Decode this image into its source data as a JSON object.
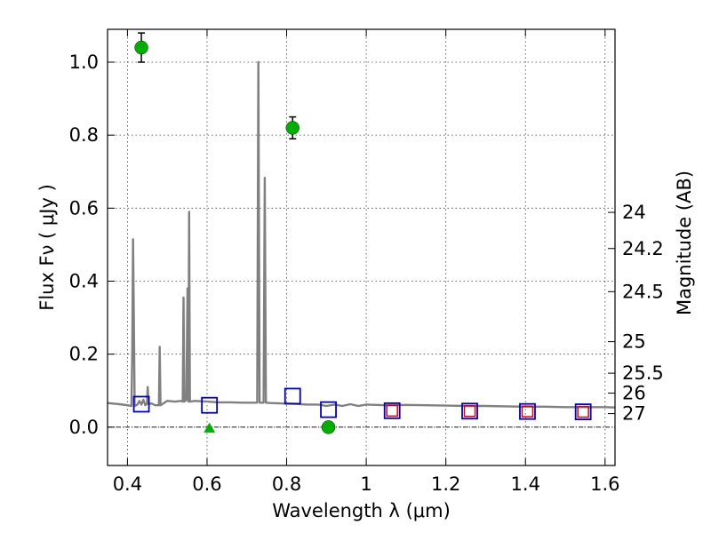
{
  "chart_data": {
    "type": "line",
    "xlabel": "Wavelength  λ (μm)",
    "ylabel": "Flux  Fν  ( μJy )",
    "ylabel_right": "Magnitude (AB)",
    "xlim": [
      0.35,
      1.625
    ],
    "ylim": [
      -0.105,
      1.09
    ],
    "x_ticks": [
      0.4,
      0.6,
      0.8,
      1.0,
      1.2,
      1.4,
      1.6
    ],
    "x_tick_labels": [
      "0.4",
      "0.6",
      "0.8",
      "1",
      "1.2",
      "1.4",
      "1.6"
    ],
    "y_ticks": [
      0.0,
      0.2,
      0.4,
      0.6,
      0.8,
      1.0
    ],
    "y_tick_labels": [
      "0.0",
      "0.2",
      "0.4",
      "0.6",
      "0.8",
      "1.0"
    ],
    "right_ticks": [
      {
        "label": "24",
        "mag": 24.0
      },
      {
        "label": "24.2",
        "mag": 24.2
      },
      {
        "label": "24.5",
        "mag": 24.5
      },
      {
        "label": "25",
        "mag": 25.0
      },
      {
        "label": "25.5",
        "mag": 25.5
      },
      {
        "label": "26",
        "mag": 26.0
      },
      {
        "label": "27",
        "mag": 27.0
      }
    ],
    "grid": true,
    "series": [
      {
        "name": "model spectrum",
        "color": "#808080",
        "kind": "line",
        "points": [
          [
            0.35,
            0.066
          ],
          [
            0.38,
            0.063
          ],
          [
            0.4,
            0.06
          ],
          [
            0.41,
            0.058
          ],
          [
            0.412,
            0.2
          ],
          [
            0.414,
            0.515
          ],
          [
            0.416,
            0.3
          ],
          [
            0.418,
            0.058
          ],
          [
            0.425,
            0.062
          ],
          [
            0.43,
            0.072
          ],
          [
            0.435,
            0.062
          ],
          [
            0.44,
            0.075
          ],
          [
            0.445,
            0.06
          ],
          [
            0.449,
            0.065
          ],
          [
            0.451,
            0.11
          ],
          [
            0.453,
            0.063
          ],
          [
            0.46,
            0.065
          ],
          [
            0.47,
            0.06
          ],
          [
            0.479,
            0.06
          ],
          [
            0.481,
            0.22
          ],
          [
            0.483,
            0.06
          ],
          [
            0.5,
            0.072
          ],
          [
            0.52,
            0.07
          ],
          [
            0.535,
            0.072
          ],
          [
            0.539,
            0.07
          ],
          [
            0.541,
            0.355
          ],
          [
            0.543,
            0.07
          ],
          [
            0.548,
            0.075
          ],
          [
            0.551,
            0.38
          ],
          [
            0.553,
            0.07
          ],
          [
            0.555,
            0.59
          ],
          [
            0.557,
            0.07
          ],
          [
            0.57,
            0.072
          ],
          [
            0.6,
            0.07
          ],
          [
            0.63,
            0.068
          ],
          [
            0.66,
            0.068
          ],
          [
            0.69,
            0.067
          ],
          [
            0.72,
            0.067
          ],
          [
            0.726,
            0.067
          ],
          [
            0.729,
            1.0
          ],
          [
            0.732,
            0.067
          ],
          [
            0.737,
            0.067
          ],
          [
            0.742,
            0.067
          ],
          [
            0.745,
            0.683
          ],
          [
            0.748,
            0.067
          ],
          [
            0.76,
            0.066
          ],
          [
            0.79,
            0.065
          ],
          [
            0.82,
            0.064
          ],
          [
            0.85,
            0.062
          ],
          [
            0.88,
            0.062
          ],
          [
            0.9,
            0.058
          ],
          [
            0.92,
            0.062
          ],
          [
            0.94,
            0.058
          ],
          [
            0.96,
            0.063
          ],
          [
            0.98,
            0.058
          ],
          [
            1.0,
            0.062
          ],
          [
            1.05,
            0.06
          ],
          [
            1.1,
            0.061
          ],
          [
            1.15,
            0.06
          ],
          [
            1.2,
            0.059
          ],
          [
            1.25,
            0.058
          ],
          [
            1.3,
            0.058
          ],
          [
            1.35,
            0.057
          ],
          [
            1.4,
            0.056
          ],
          [
            1.45,
            0.056
          ],
          [
            1.5,
            0.055
          ],
          [
            1.55,
            0.055
          ],
          [
            1.6,
            0.055
          ],
          [
            1.625,
            0.054
          ]
        ]
      },
      {
        "name": "observed photometry",
        "color": "#00b000",
        "kind": "circle",
        "points": [
          {
            "x": 0.435,
            "y": 1.04,
            "err": 0.04
          },
          {
            "x": 0.815,
            "y": 0.82,
            "err": 0.03
          },
          {
            "x": 0.905,
            "y": 0.0,
            "err": 0.01
          }
        ]
      },
      {
        "name": "upper limit",
        "color": "#00b000",
        "kind": "triangle",
        "points": [
          {
            "x": 0.606,
            "y": 0.0
          }
        ]
      },
      {
        "name": "model photometry",
        "color": "#0000cc",
        "kind": "square",
        "points": [
          {
            "x": 0.435,
            "y": 0.063
          },
          {
            "x": 0.606,
            "y": 0.06
          },
          {
            "x": 0.815,
            "y": 0.085
          },
          {
            "x": 0.905,
            "y": 0.048
          },
          {
            "x": 1.065,
            "y": 0.045
          },
          {
            "x": 1.26,
            "y": 0.044
          },
          {
            "x": 1.405,
            "y": 0.043
          },
          {
            "x": 1.545,
            "y": 0.042
          }
        ]
      },
      {
        "name": "model photometry (red)",
        "color": "#dd0000",
        "kind": "small-square",
        "points": [
          {
            "x": 1.065,
            "y": 0.045
          },
          {
            "x": 1.26,
            "y": 0.044
          },
          {
            "x": 1.405,
            "y": 0.043
          },
          {
            "x": 1.545,
            "y": 0.042
          }
        ]
      }
    ]
  }
}
